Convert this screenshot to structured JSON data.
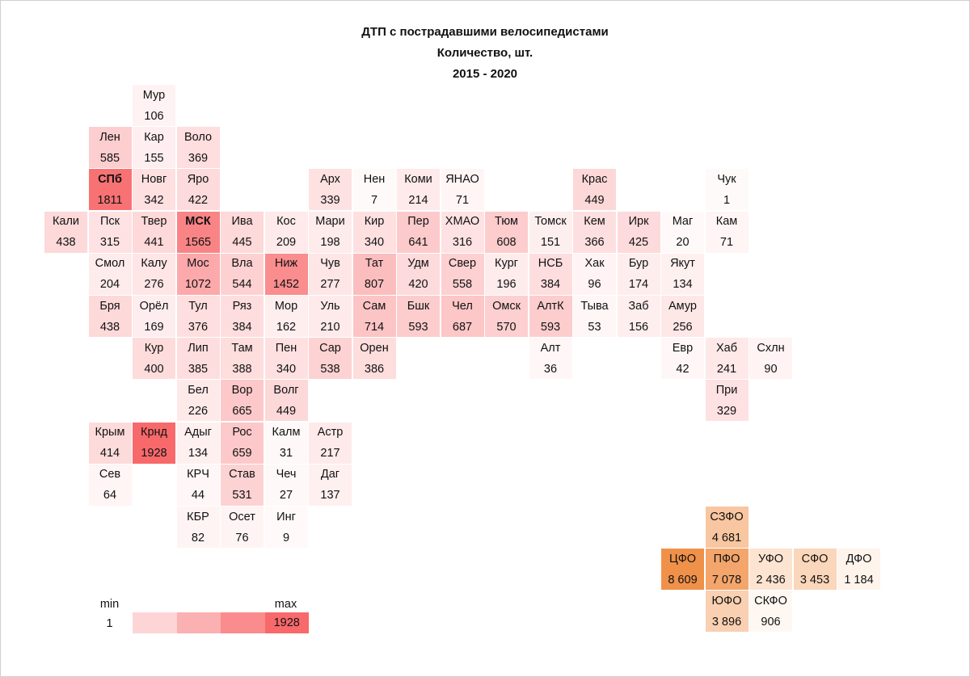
{
  "chart_data": {
    "type": "heatmap",
    "title": "ДТП с пострадавшими велосипедистами",
    "subtitle": "Количество, шт.",
    "period": "2015 - 2020",
    "layout": "tile-grid map of Russian regions",
    "color_scale": {
      "min_label": "min",
      "max_label": "max",
      "min": 1,
      "max": 1928,
      "low_color": "#ffffff",
      "high_color": "#f8696b"
    },
    "regions": [
      {
        "label": "Мур",
        "value": 106,
        "col": 2,
        "row": 0
      },
      {
        "label": "Лен",
        "value": 585,
        "col": 1,
        "row": 1
      },
      {
        "label": "Кар",
        "value": 155,
        "col": 2,
        "row": 1
      },
      {
        "label": "Воло",
        "value": 369,
        "col": 3,
        "row": 1
      },
      {
        "label": "СПб",
        "value": 1811,
        "col": 1,
        "row": 2,
        "bold": true
      },
      {
        "label": "Новг",
        "value": 342,
        "col": 2,
        "row": 2
      },
      {
        "label": "Яро",
        "value": 422,
        "col": 3,
        "row": 2
      },
      {
        "label": "Арх",
        "value": 339,
        "col": 6,
        "row": 2
      },
      {
        "label": "Нен",
        "value": 7,
        "col": 7,
        "row": 2
      },
      {
        "label": "Коми",
        "value": 214,
        "col": 8,
        "row": 2
      },
      {
        "label": "ЯНАО",
        "value": 71,
        "col": 9,
        "row": 2
      },
      {
        "label": "Крас",
        "value": 449,
        "col": 12,
        "row": 2
      },
      {
        "label": "Чук",
        "value": 1,
        "col": 15,
        "row": 2
      },
      {
        "label": "Кали",
        "value": 438,
        "col": 0,
        "row": 3
      },
      {
        "label": "Пск",
        "value": 315,
        "col": 1,
        "row": 3
      },
      {
        "label": "Твер",
        "value": 441,
        "col": 2,
        "row": 3
      },
      {
        "label": "МСК",
        "value": 1565,
        "col": 3,
        "row": 3,
        "bold": true
      },
      {
        "label": "Ива",
        "value": 445,
        "col": 4,
        "row": 3
      },
      {
        "label": "Кос",
        "value": 209,
        "col": 5,
        "row": 3
      },
      {
        "label": "Мари",
        "value": 198,
        "col": 6,
        "row": 3
      },
      {
        "label": "Кир",
        "value": 340,
        "col": 7,
        "row": 3
      },
      {
        "label": "Пер",
        "value": 641,
        "col": 8,
        "row": 3
      },
      {
        "label": "ХМАО",
        "value": 316,
        "col": 9,
        "row": 3
      },
      {
        "label": "Тюм",
        "value": 608,
        "col": 10,
        "row": 3
      },
      {
        "label": "Томск",
        "value": 151,
        "col": 11,
        "row": 3
      },
      {
        "label": "Кем",
        "value": 366,
        "col": 12,
        "row": 3
      },
      {
        "label": "Ирк",
        "value": 425,
        "col": 13,
        "row": 3
      },
      {
        "label": "Маг",
        "value": 20,
        "col": 14,
        "row": 3
      },
      {
        "label": "Кам",
        "value": 71,
        "col": 15,
        "row": 3
      },
      {
        "label": "Смол",
        "value": 204,
        "col": 1,
        "row": 4
      },
      {
        "label": "Калу",
        "value": 276,
        "col": 2,
        "row": 4
      },
      {
        "label": "Мос",
        "value": 1072,
        "col": 3,
        "row": 4
      },
      {
        "label": "Вла",
        "value": 544,
        "col": 4,
        "row": 4
      },
      {
        "label": "Ниж",
        "value": 1452,
        "col": 5,
        "row": 4
      },
      {
        "label": "Чув",
        "value": 277,
        "col": 6,
        "row": 4
      },
      {
        "label": "Тат",
        "value": 807,
        "col": 7,
        "row": 4
      },
      {
        "label": "Удм",
        "value": 420,
        "col": 8,
        "row": 4
      },
      {
        "label": "Свер",
        "value": 558,
        "col": 9,
        "row": 4
      },
      {
        "label": "Кург",
        "value": 196,
        "col": 10,
        "row": 4
      },
      {
        "label": "НСБ",
        "value": 384,
        "col": 11,
        "row": 4
      },
      {
        "label": "Хак",
        "value": 96,
        "col": 12,
        "row": 4
      },
      {
        "label": "Бур",
        "value": 174,
        "col": 13,
        "row": 4
      },
      {
        "label": "Якут",
        "value": 134,
        "col": 14,
        "row": 4
      },
      {
        "label": "Бря",
        "value": 438,
        "col": 1,
        "row": 5
      },
      {
        "label": "Орёл",
        "value": 169,
        "col": 2,
        "row": 5
      },
      {
        "label": "Тул",
        "value": 376,
        "col": 3,
        "row": 5
      },
      {
        "label": "Ряз",
        "value": 384,
        "col": 4,
        "row": 5
      },
      {
        "label": "Мор",
        "value": 162,
        "col": 5,
        "row": 5
      },
      {
        "label": "Уль",
        "value": 210,
        "col": 6,
        "row": 5
      },
      {
        "label": "Сам",
        "value": 714,
        "col": 7,
        "row": 5
      },
      {
        "label": "Бшк",
        "value": 593,
        "col": 8,
        "row": 5
      },
      {
        "label": "Чел",
        "value": 687,
        "col": 9,
        "row": 5
      },
      {
        "label": "Омск",
        "value": 570,
        "col": 10,
        "row": 5
      },
      {
        "label": "АлтК",
        "value": 593,
        "col": 11,
        "row": 5
      },
      {
        "label": "Тыва",
        "value": 53,
        "col": 12,
        "row": 5
      },
      {
        "label": "Заб",
        "value": 156,
        "col": 13,
        "row": 5
      },
      {
        "label": "Амур",
        "value": 256,
        "col": 14,
        "row": 5
      },
      {
        "label": "Кур",
        "value": 400,
        "col": 2,
        "row": 6
      },
      {
        "label": "Лип",
        "value": 385,
        "col": 3,
        "row": 6
      },
      {
        "label": "Там",
        "value": 388,
        "col": 4,
        "row": 6
      },
      {
        "label": "Пен",
        "value": 340,
        "col": 5,
        "row": 6
      },
      {
        "label": "Сар",
        "value": 538,
        "col": 6,
        "row": 6
      },
      {
        "label": "Орен",
        "value": 386,
        "col": 7,
        "row": 6
      },
      {
        "label": "Алт",
        "value": 36,
        "col": 11,
        "row": 6
      },
      {
        "label": "Евр",
        "value": 42,
        "col": 14,
        "row": 6
      },
      {
        "label": "Хаб",
        "value": 241,
        "col": 15,
        "row": 6
      },
      {
        "label": "Схлн",
        "value": 90,
        "col": 16,
        "row": 6
      },
      {
        "label": "Бел",
        "value": 226,
        "col": 3,
        "row": 7
      },
      {
        "label": "Вор",
        "value": 665,
        "col": 4,
        "row": 7
      },
      {
        "label": "Волг",
        "value": 449,
        "col": 5,
        "row": 7
      },
      {
        "label": "При",
        "value": 329,
        "col": 15,
        "row": 7
      },
      {
        "label": "Крым",
        "value": 414,
        "col": 1,
        "row": 8
      },
      {
        "label": "Крнд",
        "value": 1928,
        "col": 2,
        "row": 8
      },
      {
        "label": "Адыг",
        "value": 134,
        "col": 3,
        "row": 8
      },
      {
        "label": "Рос",
        "value": 659,
        "col": 4,
        "row": 8
      },
      {
        "label": "Калм",
        "value": 31,
        "col": 5,
        "row": 8
      },
      {
        "label": "Астр",
        "value": 217,
        "col": 6,
        "row": 8
      },
      {
        "label": "Сев",
        "value": 64,
        "col": 1,
        "row": 9
      },
      {
        "label": "КРЧ",
        "value": 44,
        "col": 3,
        "row": 9
      },
      {
        "label": "Став",
        "value": 531,
        "col": 4,
        "row": 9
      },
      {
        "label": "Чеч",
        "value": 27,
        "col": 5,
        "row": 9
      },
      {
        "label": "Даг",
        "value": 137,
        "col": 6,
        "row": 9
      },
      {
        "label": "КБР",
        "value": 82,
        "col": 3,
        "row": 10
      },
      {
        "label": "Осет",
        "value": 76,
        "col": 4,
        "row": 10
      },
      {
        "label": "Инг",
        "value": 9,
        "col": 5,
        "row": 10
      }
    ],
    "federal_districts": [
      {
        "label": "СЗФО",
        "value": 4681,
        "display": "4 681",
        "col": 15,
        "row": 10
      },
      {
        "label": "ЦФО",
        "value": 8609,
        "display": "8 609",
        "col": 14,
        "row": 11
      },
      {
        "label": "ПФО",
        "value": 7078,
        "display": "7 078",
        "col": 15,
        "row": 11
      },
      {
        "label": "УФО",
        "value": 2436,
        "display": "2 436",
        "col": 16,
        "row": 11
      },
      {
        "label": "СФО",
        "value": 3453,
        "display": "3 453",
        "col": 17,
        "row": 11
      },
      {
        "label": "ДФО",
        "value": 1184,
        "display": "1 184",
        "col": 18,
        "row": 11
      },
      {
        "label": "ЮФО",
        "value": 3896,
        "display": "3 896",
        "col": 15,
        "row": 12
      },
      {
        "label": "СКФО",
        "value": 906,
        "display": "906",
        "col": 16,
        "row": 12
      }
    ]
  },
  "header": {
    "title": "ДТП с пострадавшими велосипедистами",
    "subtitle": "Количество, шт.",
    "period": "2015 - 2020"
  },
  "legend": {
    "min_label": "min",
    "max_label": "max",
    "min_value": "1",
    "max_value": "1928",
    "swatches": [
      "#fdd5d6",
      "#fbb0b1",
      "#fa8c8e",
      "#f8696b"
    ]
  }
}
